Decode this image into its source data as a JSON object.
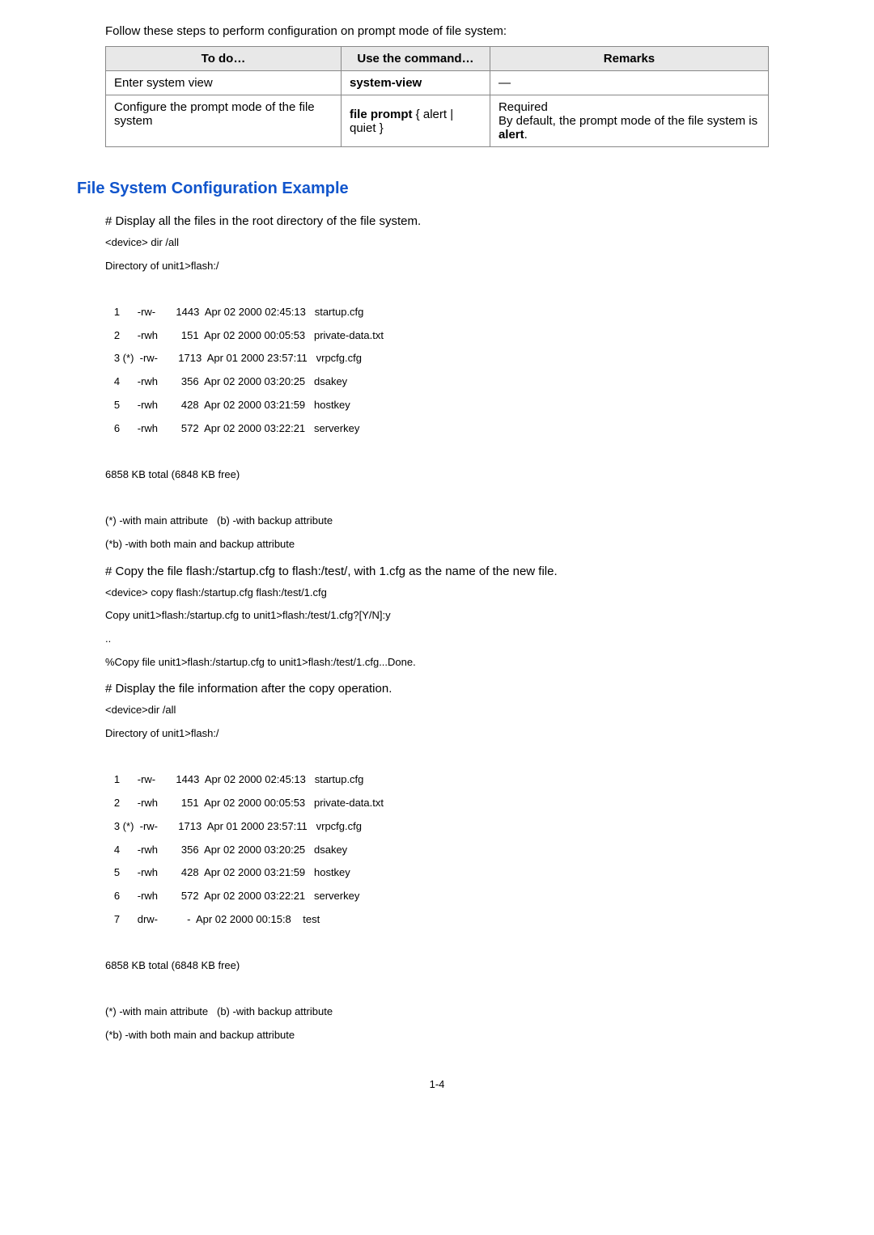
{
  "intro": "Follow these steps to perform configuration on prompt mode of file system:",
  "table": {
    "headers": [
      "To do…",
      "Use the command…",
      "Remarks"
    ],
    "rows": [
      {
        "todo": "Enter system view",
        "cmd_bold": "system-view",
        "remarks": "—"
      },
      {
        "todo": "Configure the prompt mode of the file system",
        "cmd_prefix": "file prompt ",
        "cmd_rest": "{ alert | quiet }",
        "remarks_line1": "Required",
        "remarks_line2_pre": "By default, the prompt mode of the file system is ",
        "remarks_line2_bold": "alert",
        "remarks_line2_post": "."
      }
    ]
  },
  "heading": "File System Configuration Example",
  "step1": "# Display all the files in the root directory of the file system.",
  "cmd1": "<device> dir /all",
  "cmd1_line2": "Directory of unit1>flash:/",
  "dir1": [
    "   1      -rw-       1443  Apr 02 2000 02:45:13   startup.cfg",
    "   2      -rwh        151  Apr 02 2000 00:05:53   private-data.txt",
    "   3 (*)  -rw-       1713  Apr 01 2000 23:57:11   vrpcfg.cfg",
    "   4      -rwh        356  Apr 02 2000 03:20:25   dsakey",
    "   5      -rwh        428  Apr 02 2000 03:21:59   hostkey",
    "   6      -rwh        572  Apr 02 2000 03:22:21   serverkey"
  ],
  "total1": "6858 KB total (6848 KB free)",
  "attr1": "(*) -with main attribute   (b) -with backup attribute",
  "attr2": "(*b) -with both main and backup attribute",
  "step2": "# Copy the file flash:/startup.cfg to flash:/test/, with 1.cfg as the name of the new file.",
  "cmd2a": "<device> copy flash:/startup.cfg flash:/test/1.cfg",
  "cmd2b": "Copy unit1>flash:/startup.cfg to unit1>flash:/test/1.cfg?[Y/N]:y",
  "cmd2c": "..",
  "cmd2d": "%Copy file unit1>flash:/startup.cfg to unit1>flash:/test/1.cfg...Done.",
  "step3": "# Display the file information after the copy operation.",
  "cmd3a": "<device>dir /all",
  "cmd3b": "Directory of unit1>flash:/",
  "dir2": [
    "   1      -rw-       1443  Apr 02 2000 02:45:13   startup.cfg",
    "   2      -rwh        151  Apr 02 2000 00:05:53   private-data.txt",
    "   3 (*)  -rw-       1713  Apr 01 2000 23:57:11   vrpcfg.cfg",
    "   4      -rwh        356  Apr 02 2000 03:20:25   dsakey",
    "   5      -rwh        428  Apr 02 2000 03:21:59   hostkey",
    "   6      -rwh        572  Apr 02 2000 03:22:21   serverkey",
    "   7      drw-          -  Apr 02 2000 00:15:8    test"
  ],
  "total2": "6858 KB total (6848 KB free)",
  "pagenum": "1-4"
}
